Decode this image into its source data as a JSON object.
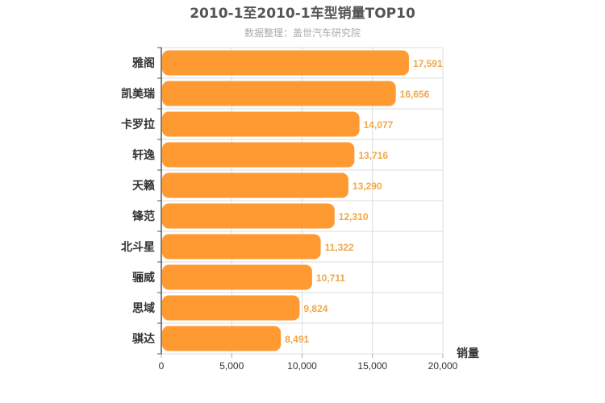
{
  "chart_data": {
    "type": "bar",
    "orientation": "horizontal",
    "title": "2010-1至2010-1车型销量TOP10",
    "subtitle": "数据整理：盖世汽车研究院",
    "categories": [
      "雅阁",
      "凯美瑞",
      "卡罗拉",
      "轩逸",
      "天籁",
      "锋范",
      "北斗星",
      "骊威",
      "思域",
      "骐达"
    ],
    "values": [
      17591,
      16656,
      14077,
      13716,
      13290,
      12310,
      11322,
      10711,
      9824,
      8491
    ],
    "value_labels": [
      "17,591",
      "16,656",
      "14,077",
      "13,716",
      "13,290",
      "12,310",
      "11,322",
      "10,711",
      "9,824",
      "8,491"
    ],
    "xlabel": "销量",
    "ylabel": "",
    "xlim": [
      0,
      20000
    ],
    "x_ticks": [
      0,
      5000,
      10000,
      15000,
      20000
    ],
    "x_tick_labels": [
      "0",
      "5,000",
      "10,000",
      "15,000",
      "20,000"
    ],
    "grid": true,
    "legend": "none",
    "bar_color": "#ff9a33",
    "value_label_color": "#f0a848"
  }
}
